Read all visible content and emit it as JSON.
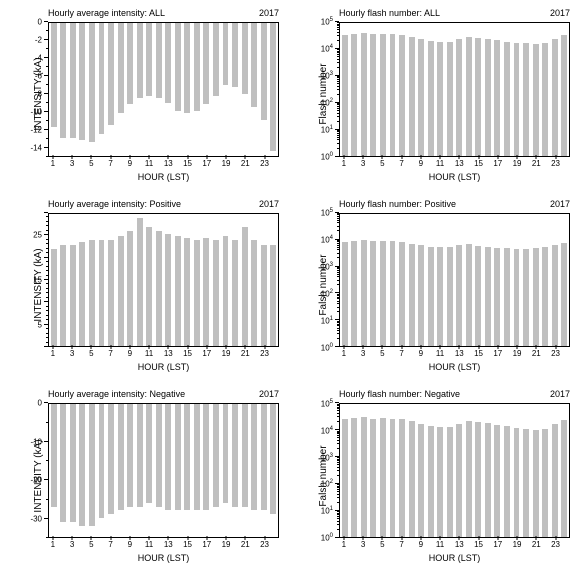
{
  "year_label": "2017",
  "xlabel": "HOUR (LST)",
  "hours": [
    1,
    2,
    3,
    4,
    5,
    6,
    7,
    8,
    9,
    10,
    11,
    12,
    13,
    14,
    15,
    16,
    17,
    18,
    19,
    20,
    21,
    22,
    23,
    24
  ],
  "xtick_labels": [
    1,
    3,
    5,
    7,
    9,
    11,
    13,
    15,
    17,
    19,
    21,
    23
  ],
  "bar_color": "#bfbfbf",
  "axis_color": "#000000",
  "background_color": "#ffffff",
  "label_fontsize": 10,
  "tick_fontsize": 8,
  "title_fontsize": 9,
  "charts": {
    "intensity_all": {
      "title": "Hourly average intensity: ALL",
      "ylabel": "INTENSITY (kA)",
      "type": "bar_linear_negative",
      "ylim": [
        -15,
        0
      ],
      "ytick_vals": [
        0,
        -2,
        -4,
        -6,
        -8,
        -10,
        -12,
        -14
      ],
      "values": [
        -11.8,
        -13.0,
        -13.0,
        -13.2,
        -13.5,
        -12.5,
        -11.5,
        -10.2,
        -9.2,
        -8.5,
        -8.2,
        -8.5,
        -9.0,
        -10.0,
        -10.2,
        -10.0,
        -9.2,
        -8.2,
        -7.0,
        -7.2,
        -8.0,
        -9.5,
        -11.0,
        -14.5
      ]
    },
    "flash_all": {
      "title": "Hourly flash number: ALL",
      "ylabel": "Flash number",
      "type": "bar_log_positive",
      "log_min_exp": 0,
      "log_max_exp": 5,
      "ytick_exps": [
        0,
        1,
        2,
        3,
        4,
        5
      ],
      "values": [
        36000,
        40000,
        42000,
        38000,
        40000,
        38000,
        36000,
        30000,
        25000,
        21000,
        19000,
        20000,
        25000,
        30000,
        28000,
        25000,
        22000,
        20000,
        18000,
        17000,
        16000,
        17000,
        24000,
        34000
      ]
    },
    "intensity_pos": {
      "title": "Hourly average intensity: Positive",
      "ylabel": "INTENSITY (kA)",
      "type": "bar_linear_positive",
      "ylim": [
        0,
        30
      ],
      "ytick_vals": [
        0,
        5,
        10,
        15,
        20,
        25,
        30
      ],
      "ytick_labels": [
        "",
        "5",
        "",
        "15",
        "",
        "25",
        ""
      ],
      "values": [
        22,
        23,
        23,
        23.5,
        24,
        24,
        24,
        25,
        26,
        29,
        27,
        26,
        25.5,
        25,
        24.5,
        24,
        24.5,
        24,
        25,
        24,
        27,
        24,
        23,
        23
      ]
    },
    "flash_pos": {
      "title": "Hourly flash number: Positive",
      "ylabel": "Falsh number",
      "type": "bar_log_positive",
      "log_min_exp": 0,
      "log_max_exp": 5,
      "ytick_exps": [
        0,
        1,
        2,
        3,
        4,
        5
      ],
      "values": [
        8500,
        9500,
        10000,
        9000,
        9000,
        9000,
        8500,
        7000,
        6500,
        5500,
        5500,
        5500,
        6500,
        7000,
        6000,
        5500,
        5000,
        5000,
        4800,
        4800,
        5000,
        5500,
        6500,
        8000
      ]
    },
    "intensity_neg": {
      "title": "Hourly average intensity: Negative",
      "ylabel": "INTENSITY (kA)",
      "type": "bar_linear_negative",
      "ylim": [
        -35,
        0
      ],
      "ytick_vals": [
        0,
        -10,
        -20,
        -30
      ],
      "values": [
        -27,
        -31,
        -31,
        -32,
        -32,
        -30,
        -29,
        -28,
        -27,
        -27,
        -26,
        -27,
        -28,
        -28,
        -28,
        -28,
        -28,
        -27,
        -26,
        -27,
        -27,
        -28,
        -28,
        -29
      ]
    },
    "flash_neg": {
      "title": "Hourly flash number: Negative",
      "ylabel": "Falsh number",
      "type": "bar_log_positive",
      "log_min_exp": 0,
      "log_max_exp": 5,
      "ytick_exps": [
        0,
        1,
        2,
        3,
        4,
        5
      ],
      "values": [
        27500,
        30500,
        32000,
        29000,
        31000,
        29000,
        27500,
        23000,
        18500,
        15500,
        13500,
        14500,
        18500,
        23000,
        22000,
        19500,
        17000,
        15000,
        13200,
        12200,
        11000,
        11500,
        17500,
        26000
      ]
    }
  },
  "panel_order": [
    "intensity_all",
    "flash_all",
    "intensity_pos",
    "flash_pos",
    "intensity_neg",
    "flash_neg"
  ]
}
